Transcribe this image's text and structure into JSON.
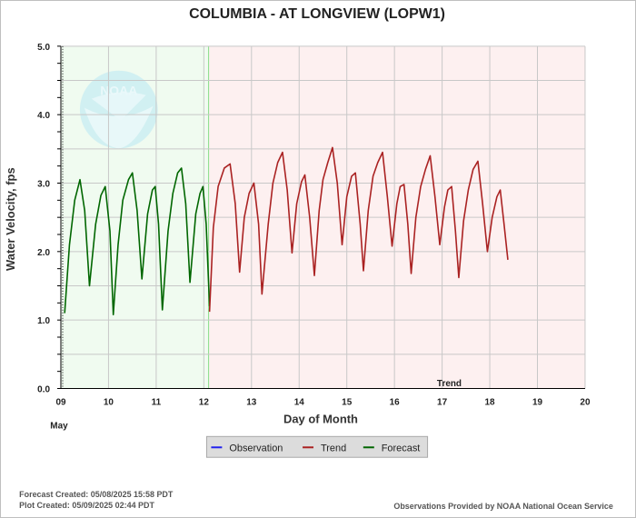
{
  "chart_data": {
    "type": "line",
    "title": "COLUMBIA - AT LONGVIEW  (LOPW1)",
    "xlabel": "Day of Month",
    "ylabel": "Water Velocity, fps",
    "month_label": "May",
    "xlim": [
      9,
      20
    ],
    "ylim": [
      0,
      5
    ],
    "x_ticks": [
      "09",
      "10",
      "11",
      "12",
      "13",
      "14",
      "15",
      "16",
      "17",
      "18",
      "19",
      "20"
    ],
    "y_ticks": [
      "0.0",
      "1.0",
      "2.0",
      "3.0",
      "4.0",
      "5.0"
    ],
    "grid": true,
    "legend_position": "bottom-center",
    "regions": [
      {
        "name": "Forecast",
        "x_start": 9.0,
        "x_end": 12.1,
        "fill": "#f0fbf0"
      },
      {
        "name": "Trend",
        "x_start": 12.1,
        "x_end": 20.0,
        "fill": "#fdf0f0"
      }
    ],
    "region_labels": [
      {
        "text": "Trend",
        "x": 17.15,
        "y": 0.03
      }
    ],
    "series": [
      {
        "name": "Observation",
        "color": "#2222ee",
        "points": []
      },
      {
        "name": "Forecast",
        "color": "#006600",
        "points": [
          [
            9.08,
            1.1
          ],
          [
            9.18,
            2.1
          ],
          [
            9.29,
            2.75
          ],
          [
            9.4,
            3.05
          ],
          [
            9.5,
            2.6
          ],
          [
            9.6,
            1.5
          ],
          [
            9.73,
            2.4
          ],
          [
            9.84,
            2.82
          ],
          [
            9.93,
            2.95
          ],
          [
            10.03,
            2.3
          ],
          [
            10.1,
            1.08
          ],
          [
            10.2,
            2.1
          ],
          [
            10.3,
            2.75
          ],
          [
            10.42,
            3.05
          ],
          [
            10.5,
            3.15
          ],
          [
            10.6,
            2.6
          ],
          [
            10.7,
            1.6
          ],
          [
            10.82,
            2.55
          ],
          [
            10.92,
            2.9
          ],
          [
            10.98,
            2.95
          ],
          [
            11.05,
            2.4
          ],
          [
            11.13,
            1.15
          ],
          [
            11.25,
            2.3
          ],
          [
            11.35,
            2.85
          ],
          [
            11.45,
            3.15
          ],
          [
            11.53,
            3.22
          ],
          [
            11.62,
            2.7
          ],
          [
            11.71,
            1.55
          ],
          [
            11.83,
            2.55
          ],
          [
            11.92,
            2.85
          ],
          [
            11.98,
            2.95
          ],
          [
            12.05,
            2.4
          ],
          [
            12.12,
            1.2
          ]
        ]
      },
      {
        "name": "Trend",
        "color": "#aa2222",
        "points": [
          [
            12.12,
            1.12
          ],
          [
            12.2,
            2.35
          ],
          [
            12.3,
            2.95
          ],
          [
            12.43,
            3.22
          ],
          [
            12.55,
            3.28
          ],
          [
            12.66,
            2.7
          ],
          [
            12.75,
            1.7
          ],
          [
            12.85,
            2.5
          ],
          [
            12.95,
            2.85
          ],
          [
            13.05,
            3.0
          ],
          [
            13.15,
            2.4
          ],
          [
            13.22,
            1.38
          ],
          [
            13.35,
            2.4
          ],
          [
            13.45,
            3.0
          ],
          [
            13.55,
            3.3
          ],
          [
            13.65,
            3.45
          ],
          [
            13.75,
            2.9
          ],
          [
            13.85,
            1.98
          ],
          [
            13.95,
            2.7
          ],
          [
            14.05,
            3.02
          ],
          [
            14.12,
            3.12
          ],
          [
            14.22,
            2.5
          ],
          [
            14.32,
            1.65
          ],
          [
            14.42,
            2.6
          ],
          [
            14.5,
            3.05
          ],
          [
            14.6,
            3.3
          ],
          [
            14.7,
            3.52
          ],
          [
            14.8,
            3.0
          ],
          [
            14.9,
            2.1
          ],
          [
            15.0,
            2.8
          ],
          [
            15.1,
            3.1
          ],
          [
            15.18,
            3.15
          ],
          [
            15.28,
            2.4
          ],
          [
            15.35,
            1.72
          ],
          [
            15.45,
            2.6
          ],
          [
            15.55,
            3.1
          ],
          [
            15.65,
            3.3
          ],
          [
            15.75,
            3.45
          ],
          [
            15.85,
            2.8
          ],
          [
            15.95,
            2.08
          ],
          [
            16.05,
            2.7
          ],
          [
            16.12,
            2.95
          ],
          [
            16.2,
            2.98
          ],
          [
            16.28,
            2.4
          ],
          [
            16.35,
            1.68
          ],
          [
            16.45,
            2.5
          ],
          [
            16.55,
            2.95
          ],
          [
            16.65,
            3.2
          ],
          [
            16.75,
            3.4
          ],
          [
            16.85,
            2.8
          ],
          [
            16.95,
            2.1
          ],
          [
            17.05,
            2.65
          ],
          [
            17.12,
            2.9
          ],
          [
            17.2,
            2.95
          ],
          [
            17.28,
            2.3
          ],
          [
            17.35,
            1.62
          ],
          [
            17.45,
            2.45
          ],
          [
            17.55,
            2.9
          ],
          [
            17.65,
            3.2
          ],
          [
            17.75,
            3.32
          ],
          [
            17.85,
            2.7
          ],
          [
            17.95,
            2.0
          ],
          [
            18.05,
            2.5
          ],
          [
            18.15,
            2.8
          ],
          [
            18.22,
            2.9
          ],
          [
            18.3,
            2.4
          ],
          [
            18.38,
            1.88
          ]
        ]
      }
    ],
    "watermark": "NOAA"
  },
  "footer": {
    "forecast_created": "Forecast Created: 05/08/2025 15:58 PDT",
    "plot_created": "Plot Created: 05/09/2025 02:44 PDT",
    "credit": "Observations Provided by NOAA National Ocean Service"
  }
}
